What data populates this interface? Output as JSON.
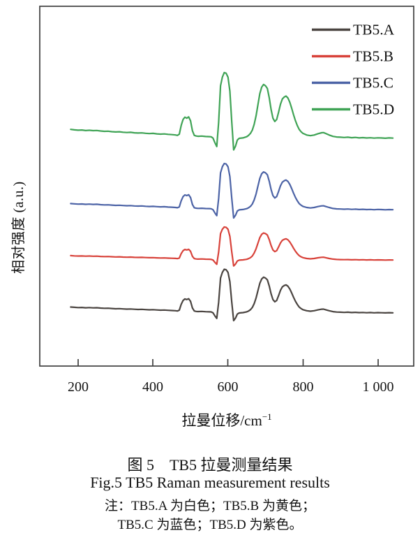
{
  "figure": {
    "caption_cn": "图 5　TB5 拉曼测量结果",
    "caption_en": "Fig.5 TB5 Raman measurement results",
    "note_line1": "注：TB5.A 为白色；TB5.B 为黄色；",
    "note_line2": "TB5.C 为蓝色；TB5.D 为紫色。"
  },
  "chart_data": {
    "type": "line",
    "title": "",
    "xlabel": "拉曼位移/cm⁻¹",
    "xlabel_main": "拉曼位移/cm",
    "xlabel_sup": "−1",
    "ylabel": "相对强度 (a.u.)",
    "x_ticks": [
      200,
      400,
      600,
      800,
      1000
    ],
    "x_tick_labels": [
      "200",
      "400",
      "600",
      "800",
      "1 000"
    ],
    "xlim": [
      98,
      1097
    ],
    "ylim": [
      0,
      6.8
    ],
    "grid": false,
    "legend_position": "top-right-inside",
    "y_axis_note": "arbitrary units, no y ticks; four spectra stacked with vertical offsets",
    "peaks_cm1": [
      490,
      593,
      700,
      757,
      850
    ],
    "shape_x": [
      180,
      190,
      200,
      210,
      220,
      230,
      240,
      250,
      260,
      270,
      280,
      290,
      300,
      310,
      320,
      330,
      340,
      350,
      360,
      370,
      380,
      390,
      400,
      410,
      420,
      430,
      440,
      450,
      460,
      465,
      470,
      475,
      480,
      485,
      490,
      495,
      500,
      505,
      510,
      515,
      520,
      530,
      540,
      550,
      555,
      560,
      565,
      570,
      575,
      580,
      585,
      590,
      595,
      600,
      605,
      610,
      615,
      620,
      625,
      630,
      640,
      650,
      655,
      660,
      665,
      670,
      675,
      680,
      685,
      690,
      695,
      700,
      705,
      710,
      715,
      720,
      725,
      730,
      735,
      740,
      745,
      750,
      755,
      760,
      765,
      770,
      775,
      780,
      785,
      790,
      795,
      800,
      810,
      820,
      830,
      840,
      850,
      855,
      860,
      870,
      880,
      890,
      900,
      910,
      920,
      930,
      940,
      950,
      960,
      970,
      980,
      990,
      1000,
      1010,
      1020,
      1030,
      1040
    ],
    "shape_intensity": [
      0.14,
      0.133,
      0.128,
      0.131,
      0.123,
      0.127,
      0.121,
      0.124,
      0.116,
      0.111,
      0.113,
      0.106,
      0.101,
      0.104,
      0.097,
      0.093,
      0.096,
      0.089,
      0.085,
      0.088,
      0.081,
      0.077,
      0.08,
      0.073,
      0.069,
      0.072,
      0.065,
      0.061,
      0.056,
      0.05,
      0.068,
      0.2,
      0.29,
      0.325,
      0.31,
      0.33,
      0.27,
      0.12,
      0.05,
      0.04,
      0.036,
      0.039,
      0.033,
      0.031,
      0.028,
      0.008,
      -0.06,
      -0.12,
      0.25,
      0.8,
      0.93,
      1.0,
      0.99,
      0.93,
      0.72,
      0.25,
      -0.17,
      -0.115,
      -0.02,
      0.005,
      0.012,
      0.03,
      0.05,
      0.08,
      0.13,
      0.22,
      0.35,
      0.52,
      0.68,
      0.78,
      0.82,
      0.8,
      0.76,
      0.62,
      0.44,
      0.31,
      0.26,
      0.29,
      0.4,
      0.52,
      0.6,
      0.63,
      0.645,
      0.615,
      0.55,
      0.46,
      0.36,
      0.27,
      0.2,
      0.14,
      0.105,
      0.08,
      0.055,
      0.045,
      0.055,
      0.075,
      0.09,
      0.092,
      0.08,
      0.055,
      0.035,
      0.025,
      0.022,
      0.018,
      0.022,
      0.015,
      0.019,
      0.012,
      0.016,
      0.01,
      0.014,
      0.008,
      0.013,
      0.01,
      0.006,
      0.011,
      0.008
    ],
    "series": [
      {
        "id": "A",
        "label": "TB5.A",
        "color": "#4a4440",
        "baseline_offset": 1.0,
        "peak_amplitude": 0.83
      },
      {
        "id": "B",
        "label": "TB5.B",
        "color": "#d8423a",
        "baseline_offset": 2.0,
        "peak_amplitude": 0.63
      },
      {
        "id": "C",
        "label": "TB5.C",
        "color": "#4c63a6",
        "baseline_offset": 2.95,
        "peak_amplitude": 0.88
      },
      {
        "id": "D",
        "label": "TB5.D",
        "color": "#3fa355",
        "baseline_offset": 4.3,
        "peak_amplitude": 1.25
      }
    ],
    "axis_color": "#3f3f3f"
  }
}
